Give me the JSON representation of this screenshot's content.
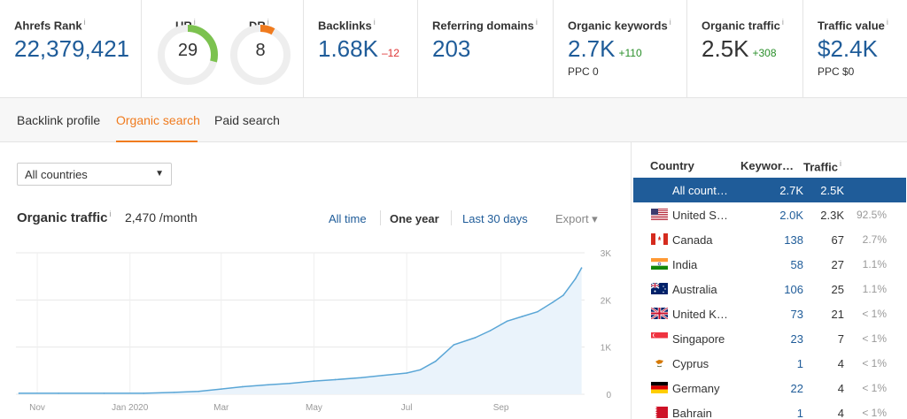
{
  "metrics": {
    "ahrefs_rank": {
      "label": "Ahrefs Rank",
      "info": "i",
      "value": "22,379,421"
    },
    "ur": {
      "label": "UR",
      "info": "i",
      "value": "29",
      "score": 29
    },
    "dr": {
      "label": "DR",
      "info": "i",
      "value": "8",
      "score": 8
    },
    "backlinks": {
      "label": "Backlinks",
      "info": "i",
      "value": "1.68K",
      "delta": "–12"
    },
    "referring_domains": {
      "label": "Referring domains",
      "info": "i",
      "value": "203"
    },
    "organic_keywords": {
      "label": "Organic keywords",
      "info": "i",
      "value": "2.7K",
      "delta": "+110",
      "sub": "PPC 0"
    },
    "organic_traffic": {
      "label": "Organic traffic",
      "info": "i",
      "value": "2.5K",
      "delta": "+308"
    },
    "traffic_value": {
      "label": "Traffic value",
      "info": "i",
      "value": "$2.4K",
      "sub": "PPC $0"
    }
  },
  "tabs": [
    {
      "label": "Backlink profile",
      "active": false
    },
    {
      "label": "Organic search",
      "active": true
    },
    {
      "label": "Paid search",
      "active": false
    }
  ],
  "country_select": {
    "value": "All countries",
    "caret": "▼"
  },
  "organic_panel": {
    "title": "Organic traffic",
    "info": "i",
    "value": "2,470 /month",
    "ranges": [
      "All time",
      "One year",
      "Last 30 days"
    ],
    "selected_range": "One year",
    "export_label": "Export ▾"
  },
  "chart_data": {
    "type": "area",
    "x_labels": [
      "Nov",
      "Jan 2020",
      "Mar",
      "May",
      "Jul",
      "Sep"
    ],
    "y_labels": [
      "3K",
      "2K",
      "1K",
      "0"
    ],
    "ylim": [
      0,
      3000
    ],
    "grid": true,
    "x": [
      "2019-10-20",
      "2019-11-15",
      "2019-12-15",
      "2020-01-10",
      "2020-01-30",
      "2020-02-15",
      "2020-03-01",
      "2020-03-15",
      "2020-04-01",
      "2020-04-15",
      "2020-05-01",
      "2020-05-15",
      "2020-06-01",
      "2020-06-15",
      "2020-07-01",
      "2020-07-10",
      "2020-07-20",
      "2020-08-01",
      "2020-08-15",
      "2020-08-25",
      "2020-09-05",
      "2020-09-15",
      "2020-09-25",
      "2020-10-05",
      "2020-10-12",
      "2020-10-20",
      "2020-10-24"
    ],
    "values": [
      20,
      20,
      20,
      20,
      40,
      60,
      110,
      160,
      200,
      230,
      280,
      310,
      350,
      400,
      450,
      520,
      700,
      1050,
      1200,
      1350,
      1550,
      1650,
      1750,
      1950,
      2100,
      2450,
      2680
    ],
    "series_color": "#5aa6d6",
    "fill_color": "#eaf3fb"
  },
  "country_table": {
    "headers": {
      "country": "Country",
      "keywords": "Keywor…",
      "traffic": "Traffic",
      "traffic_info": "i"
    },
    "rows": [
      {
        "name": "All count…",
        "keywords": "2.7K",
        "traffic": "2.5K",
        "pct": "",
        "flag": "none",
        "selected": true
      },
      {
        "name": "United S…",
        "keywords": "2.0K",
        "traffic": "2.3K",
        "pct": "92.5%",
        "flag": "us-flag-icon"
      },
      {
        "name": "Canada",
        "keywords": "138",
        "traffic": "67",
        "pct": "2.7%",
        "flag": "canada-flag-icon"
      },
      {
        "name": "India",
        "keywords": "58",
        "traffic": "27",
        "pct": "1.1%",
        "flag": "india-flag-icon"
      },
      {
        "name": "Australia",
        "keywords": "106",
        "traffic": "25",
        "pct": "1.1%",
        "flag": "australia-flag-icon"
      },
      {
        "name": "United K…",
        "keywords": "73",
        "traffic": "21",
        "pct": "< 1%",
        "flag": "uk-flag-icon"
      },
      {
        "name": "Singapore",
        "keywords": "23",
        "traffic": "7",
        "pct": "< 1%",
        "flag": "singapore-flag-icon"
      },
      {
        "name": "Cyprus",
        "keywords": "1",
        "traffic": "4",
        "pct": "< 1%",
        "flag": "cyprus-flag-icon"
      },
      {
        "name": "Germany",
        "keywords": "22",
        "traffic": "4",
        "pct": "< 1%",
        "flag": "germany-flag-icon"
      },
      {
        "name": "Bahrain",
        "keywords": "1",
        "traffic": "4",
        "pct": "< 1%",
        "flag": "bahrain-flag-icon"
      }
    ]
  },
  "colors": {
    "accent_orange": "#f07b1e",
    "link_blue": "#1f5c99",
    "gauge_ur": "#7cc24f",
    "gauge_dr": "#f07b1e",
    "positive": "#2a8f2a",
    "negative": "#dd3333"
  }
}
